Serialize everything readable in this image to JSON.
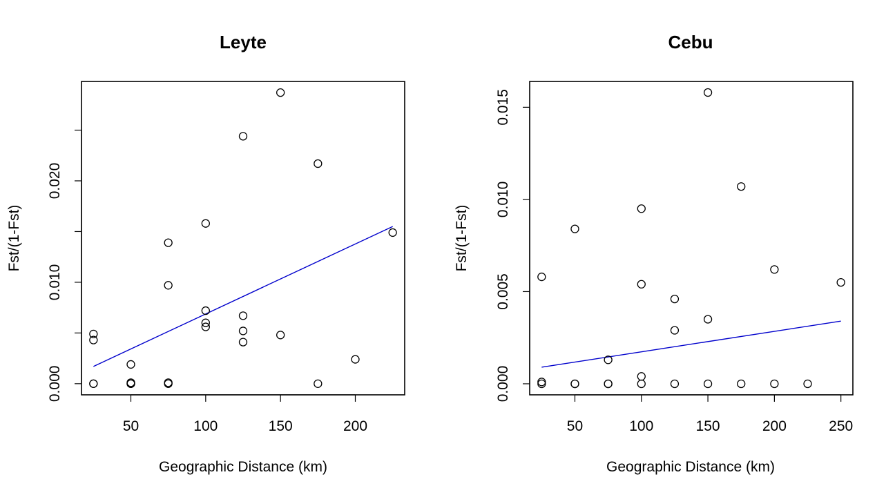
{
  "chart_data": [
    {
      "type": "scatter",
      "title": "Leyte",
      "xlabel": "Geographic Distance (km)",
      "ylabel": "Fst/(1-Fst)",
      "xticks": [
        50,
        100,
        150,
        200
      ],
      "xtick_labels": [
        "50",
        "100",
        "150",
        "200"
      ],
      "yticks": [
        0.0,
        0.005,
        0.01,
        0.015,
        0.02,
        0.025
      ],
      "ytick_labels": [
        "0.000",
        "",
        "0.010",
        "",
        "0.020",
        ""
      ],
      "xlim": [
        17,
        233
      ],
      "ylim": [
        -0.0011,
        0.0298
      ],
      "grid": false,
      "points": [
        {
          "x": 25,
          "y": 0.0049
        },
        {
          "x": 25,
          "y": 0.0043
        },
        {
          "x": 25,
          "y": 0.0
        },
        {
          "x": 25,
          "y": 0.0
        },
        {
          "x": 50,
          "y": 0.0019
        },
        {
          "x": 50,
          "y": 0.0001
        },
        {
          "x": 50,
          "y": 0.0
        },
        {
          "x": 50,
          "y": 0.0
        },
        {
          "x": 75,
          "y": 0.0139
        },
        {
          "x": 75,
          "y": 0.0097
        },
        {
          "x": 75,
          "y": 0.0001
        },
        {
          "x": 75,
          "y": 0.0
        },
        {
          "x": 100,
          "y": 0.0158
        },
        {
          "x": 100,
          "y": 0.0072
        },
        {
          "x": 100,
          "y": 0.006
        },
        {
          "x": 100,
          "y": 0.0056
        },
        {
          "x": 125,
          "y": 0.0244
        },
        {
          "x": 125,
          "y": 0.0067
        },
        {
          "x": 125,
          "y": 0.0052
        },
        {
          "x": 125,
          "y": 0.0041
        },
        {
          "x": 150,
          "y": 0.0287
        },
        {
          "x": 150,
          "y": 0.0048
        },
        {
          "x": 175,
          "y": 0.0217
        },
        {
          "x": 175,
          "y": 0.0
        },
        {
          "x": 200,
          "y": 0.0024
        },
        {
          "x": 225,
          "y": 0.0149
        }
      ],
      "fit_line": {
        "color": "#0000cc",
        "x": [
          25,
          225
        ],
        "y": [
          0.0017,
          0.0155
        ]
      }
    },
    {
      "type": "scatter",
      "title": "Cebu",
      "xlabel": "Geographic Distance (km)",
      "ylabel": "Fst/(1-Fst)",
      "xticks": [
        50,
        100,
        150,
        200,
        250
      ],
      "xtick_labels": [
        "50",
        "100",
        "150",
        "200",
        "250"
      ],
      "yticks": [
        0.0,
        0.005,
        0.01,
        0.015
      ],
      "ytick_labels": [
        "0.000",
        "0.005",
        "0.010",
        "0.015"
      ],
      "xlim": [
        16,
        259
      ],
      "ylim": [
        -0.0006,
        0.0164
      ],
      "grid": false,
      "points": [
        {
          "x": 25,
          "y": 0.0058
        },
        {
          "x": 25,
          "y": 0.0001
        },
        {
          "x": 25,
          "y": 0.0
        },
        {
          "x": 50,
          "y": 0.0084
        },
        {
          "x": 50,
          "y": 0.0
        },
        {
          "x": 50,
          "y": 0.0
        },
        {
          "x": 75,
          "y": 0.0013
        },
        {
          "x": 75,
          "y": 0.0
        },
        {
          "x": 75,
          "y": 0.0
        },
        {
          "x": 100,
          "y": 0.0095
        },
        {
          "x": 100,
          "y": 0.0054
        },
        {
          "x": 100,
          "y": 0.0004
        },
        {
          "x": 100,
          "y": 0.0
        },
        {
          "x": 125,
          "y": 0.0046
        },
        {
          "x": 125,
          "y": 0.0029
        },
        {
          "x": 125,
          "y": 0.0
        },
        {
          "x": 150,
          "y": 0.0158
        },
        {
          "x": 150,
          "y": 0.0035
        },
        {
          "x": 150,
          "y": 0.0
        },
        {
          "x": 175,
          "y": 0.0107
        },
        {
          "x": 175,
          "y": 0.0
        },
        {
          "x": 200,
          "y": 0.0062
        },
        {
          "x": 200,
          "y": 0.0
        },
        {
          "x": 225,
          "y": 0.0
        },
        {
          "x": 250,
          "y": 0.0055
        }
      ],
      "fit_line": {
        "color": "#0000cc",
        "x": [
          25,
          250
        ],
        "y": [
          0.0009,
          0.0034
        ]
      }
    }
  ]
}
